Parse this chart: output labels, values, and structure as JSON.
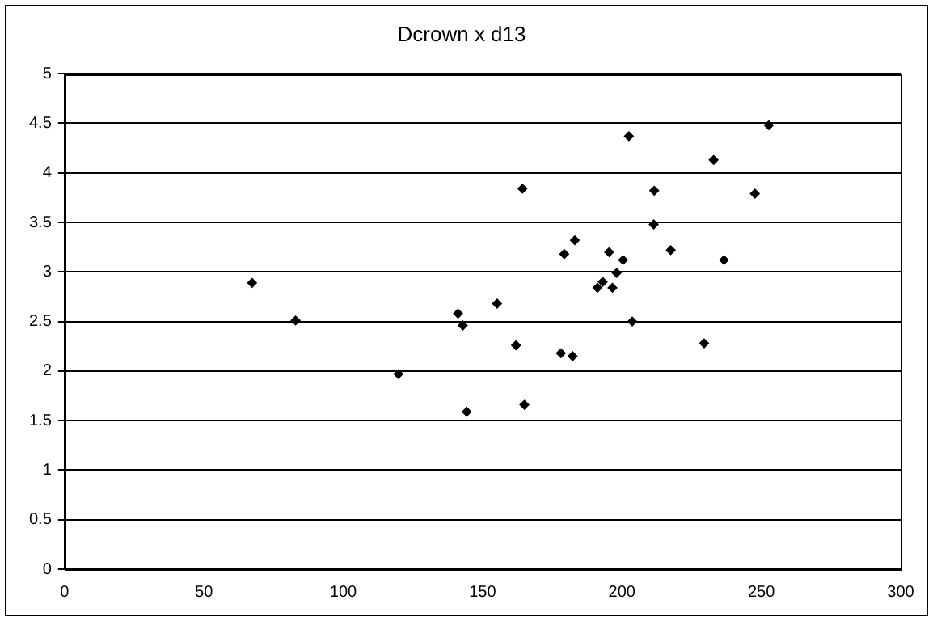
{
  "chart_data": {
    "type": "scatter",
    "title": "Dcrown x d13",
    "series": [
      {
        "color": "#000000",
        "x": [
          67.3,
          82.9,
          119.8,
          141.2,
          142.9,
          144.3,
          155.2,
          162,
          164.3,
          165,
          178.1,
          179.3,
          182.3,
          183.1,
          191.2,
          193.1,
          195.4,
          196.6,
          198.1,
          200.4,
          202.5,
          203.7,
          211.4,
          211.6,
          217.5,
          229.5,
          232.9,
          236.6,
          247.7,
          252.7
        ],
        "values": [
          2.89,
          2.51,
          1.97,
          2.58,
          2.46,
          1.59,
          2.68,
          2.26,
          3.84,
          1.66,
          2.18,
          3.18,
          2.15,
          3.32,
          2.84,
          2.9,
          3.2,
          2.84,
          2.99,
          3.12,
          4.37,
          2.5,
          3.48,
          3.82,
          3.22,
          2.28,
          4.13,
          3.12,
          3.79,
          4.48
        ]
      }
    ],
    "xlim": [
      0,
      300
    ],
    "xticks": [
      0,
      50,
      100,
      150,
      200,
      250,
      300
    ],
    "ylim": [
      0,
      5
    ],
    "yticks": [
      0,
      0.5,
      1,
      1.5,
      2,
      2.5,
      3,
      3.5,
      4,
      4.5,
      5
    ],
    "grid": "y",
    "legend": false,
    "marker": "diamond"
  }
}
